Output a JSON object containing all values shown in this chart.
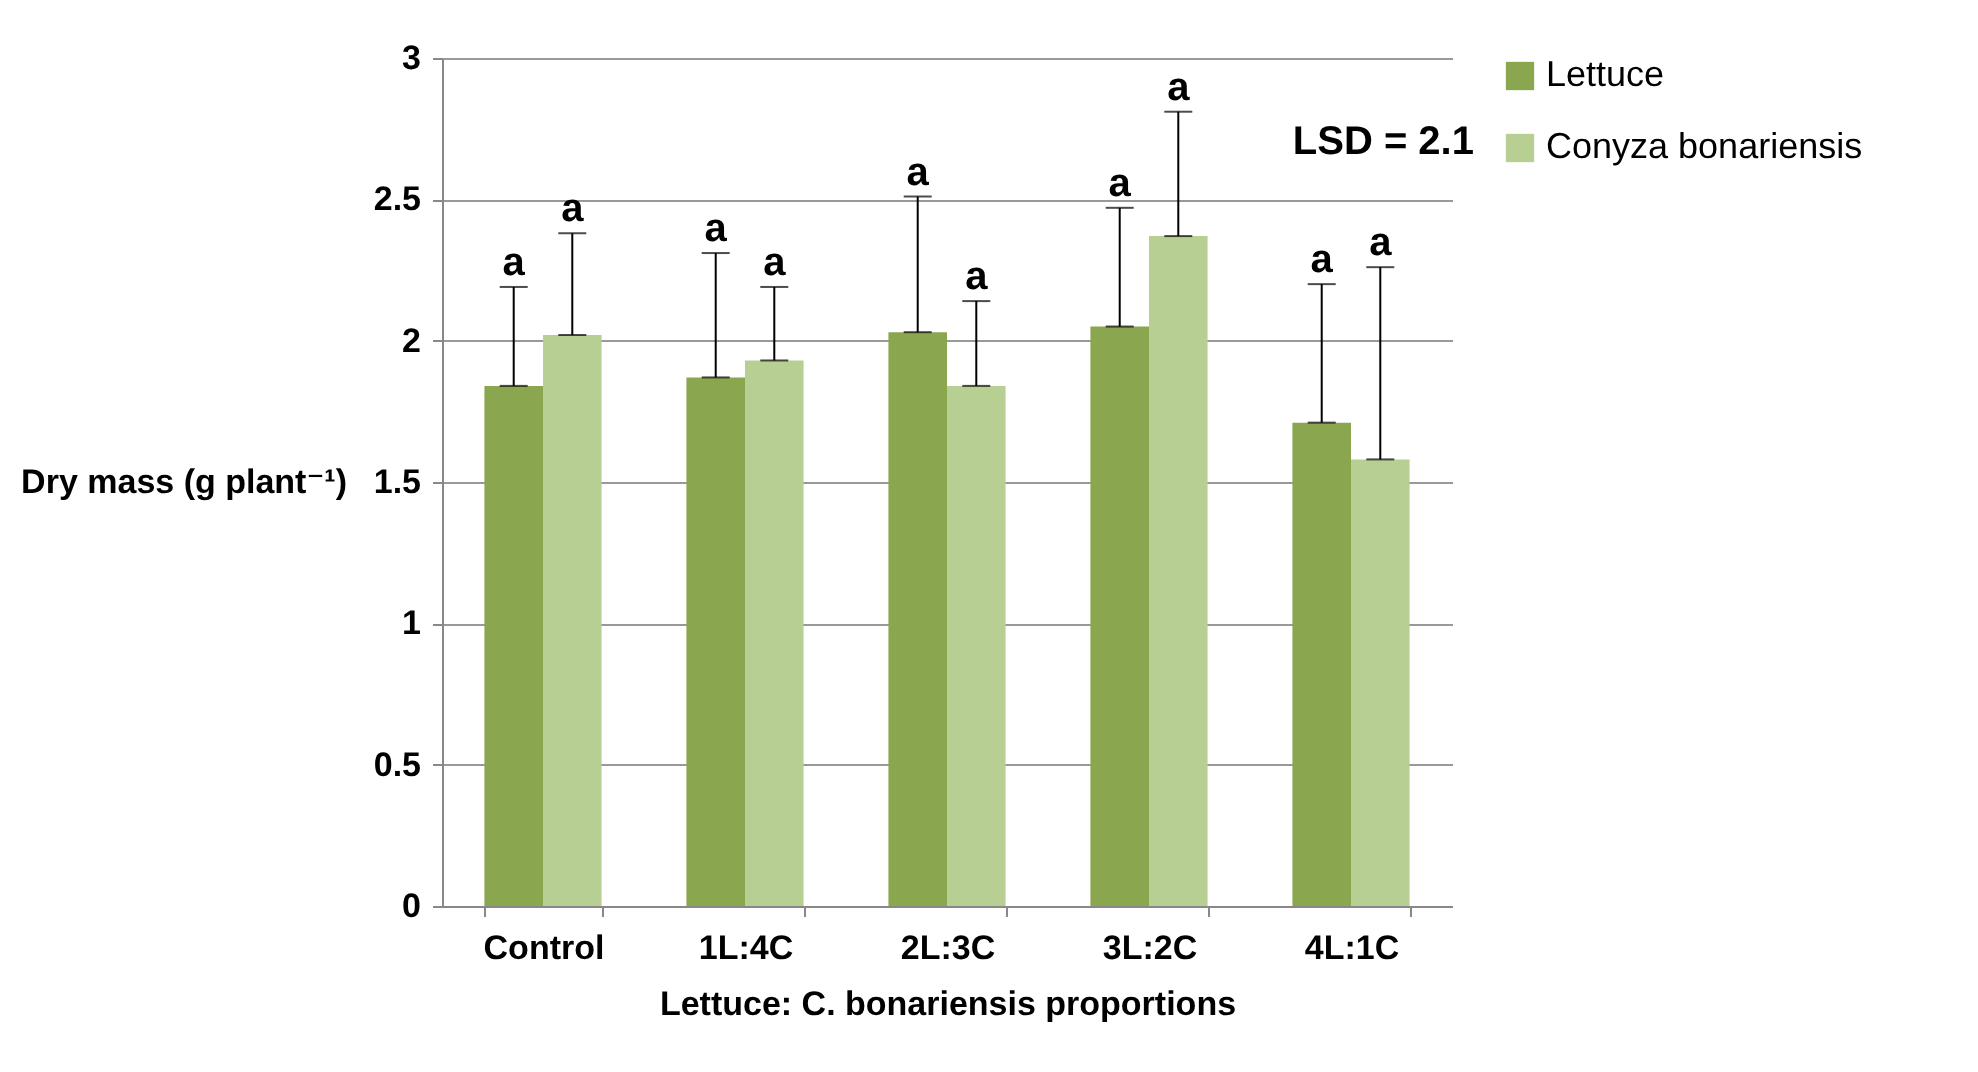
{
  "chart_data": {
    "type": "bar",
    "xlabel": "Lettuce: C. bonariensis proportions",
    "ylabel": "Dry mass (g plant⁻¹)",
    "categories": [
      "Control",
      "1L:4C",
      "2L:3C",
      "3L:2C",
      "4L:1C"
    ],
    "series": [
      {
        "name": "Lettuce",
        "color": "#8aa64e",
        "values": [
          1.84,
          1.87,
          2.03,
          2.05,
          1.71
        ],
        "errors": [
          [
            1.84,
            2.19
          ],
          [
            1.87,
            2.31
          ],
          [
            2.03,
            2.51
          ],
          [
            2.05,
            2.47
          ],
          [
            1.71,
            2.2
          ]
        ]
      },
      {
        "name": "Conyza bonariensis",
        "color": "#b8cf94",
        "values": [
          2.02,
          1.93,
          1.84,
          2.37,
          1.58
        ],
        "errors": [
          [
            2.02,
            2.38
          ],
          [
            1.93,
            2.19
          ],
          [
            1.84,
            2.14
          ],
          [
            2.37,
            2.81
          ],
          [
            1.58,
            2.26
          ]
        ]
      }
    ],
    "ylim": [
      0,
      3
    ],
    "yticks": [
      0,
      0.5,
      1,
      1.5,
      2,
      2.5,
      3
    ],
    "grid": "y",
    "legend": "right",
    "annotations": [
      "a",
      "a",
      "a",
      "a",
      "a",
      "a",
      "a",
      "a",
      "a",
      "a",
      "LSD = 2.1"
    ]
  }
}
